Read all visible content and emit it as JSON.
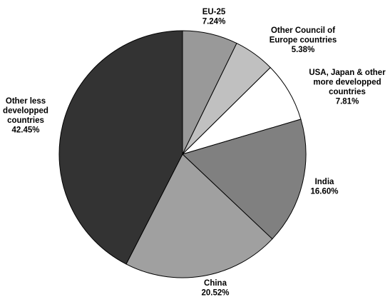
{
  "chart_data": {
    "type": "pie",
    "title": "",
    "start_angle_deg": 0,
    "direction": "clockwise",
    "slices": [
      {
        "label": "EU-25",
        "label_lines": [
          "EU-25"
        ],
        "value": 7.24,
        "value_label": "7.24%",
        "color": "#999999"
      },
      {
        "label": "Other Council of Europe countries",
        "label_lines": [
          "Other Council of",
          "Europe countries"
        ],
        "value": 5.38,
        "value_label": "5.38%",
        "color": "#c0c0c0"
      },
      {
        "label": "USA, Japan & other more developped countries",
        "label_lines": [
          "USA, Japan & other",
          "more developped",
          "countries"
        ],
        "value": 7.81,
        "value_label": "7.81%",
        "color": "#ffffff"
      },
      {
        "label": "India",
        "label_lines": [
          "India"
        ],
        "value": 16.6,
        "value_label": "16.60%",
        "color": "#808080"
      },
      {
        "label": "China",
        "label_lines": [
          "China"
        ],
        "value": 20.52,
        "value_label": "20.52%",
        "color": "#a0a0a0"
      },
      {
        "label": "Other less developped countries",
        "label_lines": [
          "Other less",
          "developped",
          "countries"
        ],
        "value": 42.45,
        "value_label": "42.45%",
        "color": "#333333"
      }
    ]
  }
}
